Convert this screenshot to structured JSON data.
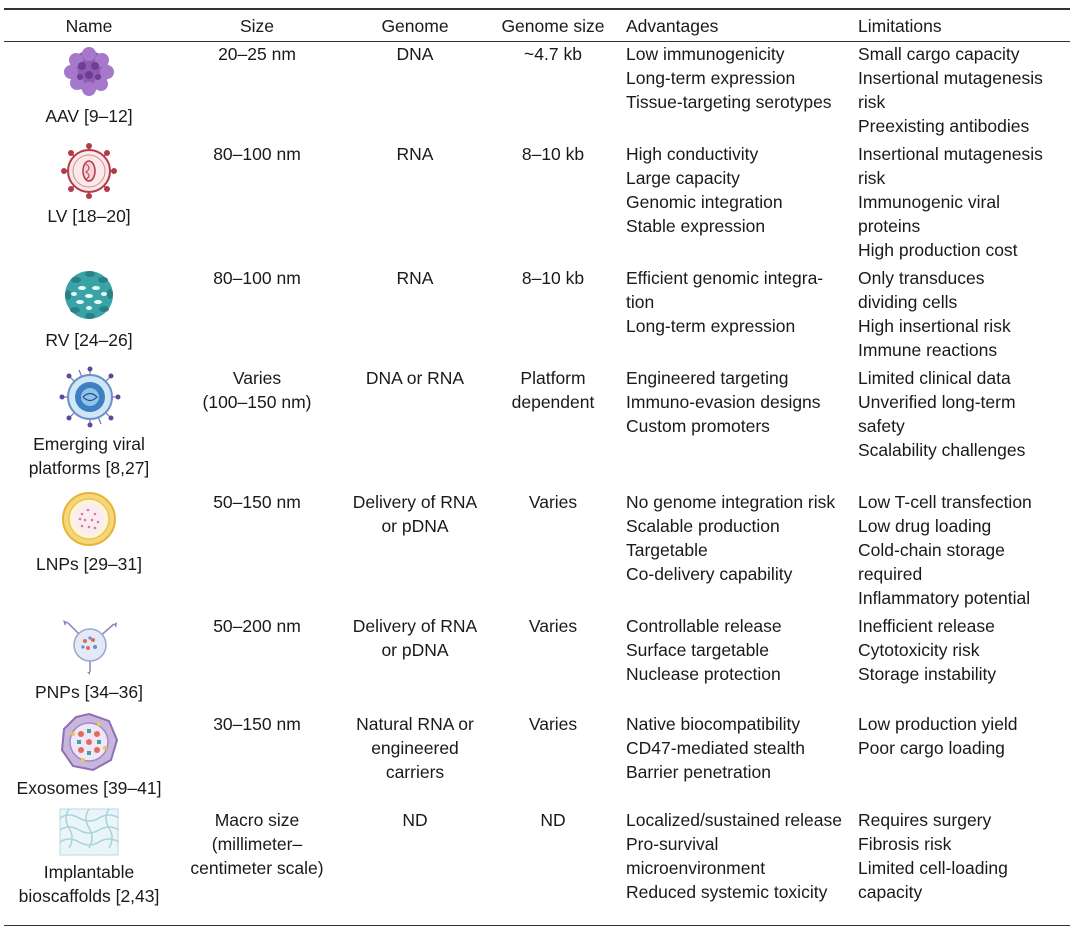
{
  "headers": {
    "name": "Name",
    "size": "Size",
    "genome": "Genome",
    "genome_size": "Genome size",
    "advantages": "Advantages",
    "limitations": "Limitations"
  },
  "rows": [
    {
      "icon": "aav-virus-icon",
      "name": [
        "AAV [9–12]"
      ],
      "size": [
        "20–25 nm"
      ],
      "genome": [
        "DNA"
      ],
      "genome_size": [
        "~4.7 kb"
      ],
      "advantages": [
        "Low immunogenicity",
        "Long-term expression",
        "Tissue-targeting serotypes"
      ],
      "limitations": [
        "Small cargo capacity",
        "Insertional mutagenesis",
        "risk",
        "Preexisting antibodies"
      ]
    },
    {
      "icon": "lentivirus-icon",
      "name": [
        "LV [18–20]"
      ],
      "size": [
        "80–100 nm"
      ],
      "genome": [
        "RNA"
      ],
      "genome_size": [
        "8–10 kb"
      ],
      "advantages": [
        "High conductivity",
        "Large capacity",
        "Genomic integration",
        "Stable expression"
      ],
      "limitations": [
        "Insertional mutagenesis",
        "risk",
        "Immunogenic viral",
        "proteins",
        "High production cost"
      ]
    },
    {
      "icon": "retrovirus-icon",
      "name": [
        "RV [24–26]"
      ],
      "size": [
        "80–100 nm"
      ],
      "genome": [
        "RNA"
      ],
      "genome_size": [
        "8–10 kb"
      ],
      "advantages": [
        "Efficient genomic integra-",
        "tion",
        "Long-term expression"
      ],
      "limitations": [
        "Only transduces",
        "dividing cells",
        "High insertional risk",
        "Immune reactions"
      ]
    },
    {
      "icon": "emerging-viral-platform-icon",
      "name": [
        "Emerging viral",
        "platforms [8,27]"
      ],
      "size": [
        "Varies",
        "(100–150 nm)"
      ],
      "genome": [
        "DNA or RNA"
      ],
      "genome_size": [
        "Platform",
        "dependent"
      ],
      "advantages": [
        "Engineered targeting",
        "Immuno-evasion designs",
        "Custom promoters"
      ],
      "limitations": [
        "Limited clinical data",
        "Unverified long-term",
        "safety",
        "Scalability challenges"
      ]
    },
    {
      "icon": "lipid-nanoparticle-icon",
      "name": [
        "LNPs [29–31]"
      ],
      "size": [
        "50–150 nm"
      ],
      "genome": [
        "Delivery of RNA",
        "or pDNA"
      ],
      "genome_size": [
        "Varies"
      ],
      "advantages": [
        "No genome integration risk",
        "Scalable production",
        "Targetable",
        "Co-delivery capability"
      ],
      "limitations": [
        "Low T-cell transfection",
        "Low drug loading",
        "Cold-chain storage",
        "required",
        "Inflammatory potential"
      ]
    },
    {
      "icon": "polymer-nanoparticle-icon",
      "name": [
        "PNPs [34–36]"
      ],
      "size": [
        "50–200 nm"
      ],
      "genome": [
        "Delivery of RNA",
        "or pDNA"
      ],
      "genome_size": [
        "Varies"
      ],
      "advantages": [
        "Controllable release",
        "Surface targetable",
        "Nuclease protection"
      ],
      "limitations": [
        "Inefficient release",
        "Cytotoxicity risk",
        "Storage instability"
      ]
    },
    {
      "icon": "exosome-icon",
      "name": [
        "Exosomes [39–41]"
      ],
      "size": [
        "30–150 nm"
      ],
      "genome": [
        "Natural RNA or",
        "engineered",
        "carriers"
      ],
      "genome_size": [
        "Varies"
      ],
      "advantages": [
        "Native biocompatibility",
        "CD47-mediated stealth",
        "Barrier penetration"
      ],
      "limitations": [
        "Low production yield",
        "Poor cargo loading"
      ]
    },
    {
      "icon": "bioscaffold-icon",
      "name": [
        "Implantable",
        "bioscaffolds [2,43]"
      ],
      "size": [
        "Macro size",
        "(millimeter–",
        "centimeter scale)"
      ],
      "genome": [
        "ND"
      ],
      "genome_size": [
        "ND"
      ],
      "advantages": [
        "Localized/sustained release",
        "Pro-survival",
        "microenvironment",
        "Reduced systemic toxicity"
      ],
      "limitations": [
        "Requires surgery",
        "Fibrosis risk",
        "Limited cell-loading",
        "capacity"
      ]
    }
  ]
}
